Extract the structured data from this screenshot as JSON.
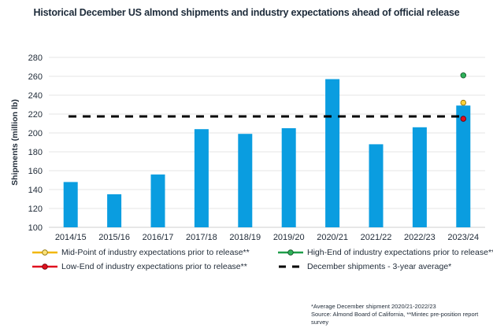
{
  "chart_data": {
    "type": "bar",
    "title": "Historical December US almond shipments and industry expectations ahead of official release",
    "xlabel": "",
    "ylabel": "Shipments (million lb)",
    "ylim": [
      100,
      280
    ],
    "yticks": [
      100,
      120,
      140,
      160,
      180,
      200,
      220,
      240,
      260,
      280
    ],
    "ytick_labels": [
      "100",
      "120",
      "140",
      "160",
      "180",
      "200",
      "220",
      "240",
      "260",
      "280"
    ],
    "grid": true,
    "categories": [
      "2014/15",
      "2015/16",
      "2016/17",
      "2017/18",
      "2018/19",
      "2019/20",
      "2020/21",
      "2021/22",
      "2022/23",
      "2023/24"
    ],
    "series": [
      {
        "name": "December shipments",
        "kind": "bar",
        "color": "#0a9de0",
        "values": [
          148,
          135,
          156,
          204,
          199,
          205,
          257,
          188,
          206,
          229
        ]
      },
      {
        "name": "December shipments - 3-year average*",
        "kind": "hline",
        "color": "#000000",
        "style": "dashed",
        "value": 217.5
      },
      {
        "name": "Mid-Point of industry expectations prior to release**",
        "kind": "point",
        "category": "2023/24",
        "color": "#f2b705",
        "value": 232
      },
      {
        "name": "High-End of industry expectations prior to release**",
        "kind": "point",
        "category": "2023/24",
        "color": "#1f9e4a",
        "value": 261
      },
      {
        "name": "Low-End of industry expectations prior to release**",
        "kind": "point",
        "category": "2023/24",
        "color": "#e0101e",
        "value": 215
      }
    ],
    "legend": {
      "placement": "bottom",
      "items": [
        {
          "label": "Mid-Point of industry expectations prior to release**",
          "marker": "line-circle",
          "color": "#f2b705"
        },
        {
          "label": "High-End of industry expectations prior to release**",
          "marker": "line-circle",
          "color": "#1f9e4a"
        },
        {
          "label": "Low-End of industry expectations prior to release**",
          "marker": "line-circle",
          "color": "#e0101e"
        },
        {
          "label": "December shipments - 3-year average*",
          "marker": "dashed-line",
          "color": "#000000"
        }
      ]
    },
    "footnotes": [
      "*Average December shipment 2020/21-2022/23",
      "Source: Almond Board of California, **Mintec pre-position report survey"
    ]
  }
}
